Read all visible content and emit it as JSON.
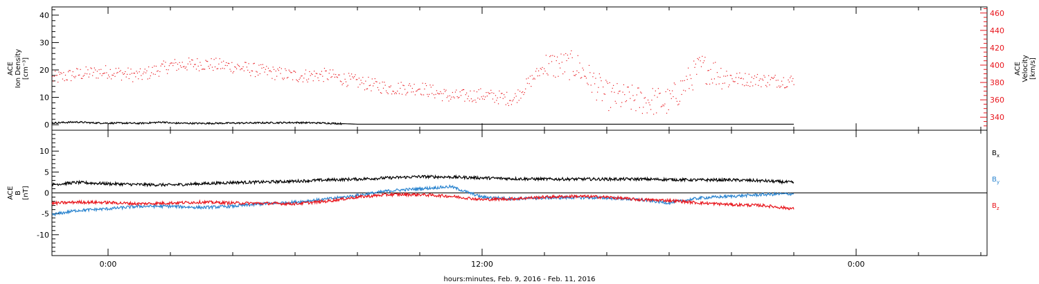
{
  "xlabel": "hours:minutes, Feb.  9, 2016 - Feb. 11, 2016",
  "x_ticks": [
    {
      "hours": 0,
      "label": "0:00"
    },
    {
      "hours": 12,
      "label": "12:00"
    },
    {
      "hours": 24,
      "label": "0:00"
    }
  ],
  "x_range_hours": [
    -1.8,
    28.2
  ],
  "minor_tick_every_hours": 2,
  "chart_data": [
    {
      "type": "scatter",
      "panel": "top",
      "ylabel_left": [
        "ACE",
        "Ion Density",
        "[cm⁻³]"
      ],
      "ylabel_right": [
        "ACE",
        "Velocity",
        "[km/s]"
      ],
      "ylim_left": [
        -2,
        43
      ],
      "yticks_left": [
        0,
        10,
        20,
        30,
        40
      ],
      "ylim_right": [
        325,
        467
      ],
      "yticks_right": [
        340,
        360,
        380,
        400,
        420,
        440,
        460
      ],
      "grid": false,
      "colors": {
        "density": "#000000",
        "velocity": "#e8141b"
      },
      "series": [
        {
          "name": "Ion Density",
          "axis": "left",
          "x_hours": [
            -1.8,
            -1.5,
            -1.0,
            -0.5,
            0.0,
            0.5,
            1.0,
            1.5,
            1.8,
            2.0,
            3.0,
            4.0,
            5.0,
            6.0,
            7.0,
            7.5,
            8.0,
            9.0,
            10.0,
            11.0,
            12.0,
            13.0,
            14.0,
            15.0,
            16.0,
            17.0,
            18.0,
            19.0,
            20.0,
            21.0,
            22.0
          ],
          "values": [
            0.6,
            0.8,
            1.0,
            0.7,
            0.6,
            0.6,
            0.5,
            0.8,
            1.0,
            0.6,
            0.5,
            0.6,
            0.7,
            0.8,
            0.6,
            0.4,
            0.2,
            0.2,
            0.2,
            0.2,
            0.2,
            0.2,
            0.2,
            0.2,
            0.2,
            0.2,
            0.2,
            0.2,
            0.2,
            0.2,
            0.2
          ]
        },
        {
          "name": "Velocity",
          "axis": "right",
          "x_hours": [
            -1.8,
            -1.0,
            0.0,
            1.0,
            2.0,
            3.0,
            4.0,
            5.0,
            6.0,
            7.0,
            8.0,
            9.0,
            10.0,
            11.0,
            12.0,
            13.0,
            14.0,
            15.0,
            16.0,
            17.0,
            18.0,
            19.0,
            20.0,
            21.0,
            22.0
          ],
          "values": [
            385,
            390,
            393,
            388,
            400,
            402,
            399,
            393,
            388,
            389,
            381,
            374,
            374,
            364,
            366,
            361,
            400,
            400,
            365,
            360,
            358,
            398,
            385,
            383,
            382
          ]
        }
      ]
    },
    {
      "type": "line",
      "panel": "bottom",
      "ylabel_left": [
        "ACE",
        "B",
        "[nT]"
      ],
      "ylim": [
        -15,
        15
      ],
      "yticks": [
        -10,
        -5,
        0,
        5,
        10
      ],
      "zero_line": true,
      "grid": false,
      "legend_position": "right",
      "series": [
        {
          "name": "Bx",
          "legend_main": "B",
          "legend_sub": "x",
          "color": "#000000",
          "x_hours": [
            -1.8,
            -1.0,
            0.0,
            1.0,
            2.0,
            3.0,
            4.0,
            5.0,
            6.0,
            7.0,
            8.0,
            9.0,
            10.0,
            11.0,
            12.0,
            13.0,
            14.0,
            15.0,
            16.0,
            17.0,
            18.0,
            19.0,
            20.0,
            21.0,
            22.0
          ],
          "values": [
            2.0,
            2.5,
            2.2,
            2.0,
            1.9,
            2.2,
            2.5,
            2.6,
            2.8,
            3.1,
            3.3,
            3.6,
            3.9,
            3.8,
            3.6,
            3.4,
            3.3,
            3.3,
            3.3,
            3.3,
            3.2,
            3.1,
            3.1,
            2.9,
            2.5
          ]
        },
        {
          "name": "By",
          "legend_main": "B",
          "legend_sub": "y",
          "color": "#2a84cf",
          "x_hours": [
            -1.8,
            -1.0,
            0.0,
            1.0,
            2.0,
            3.0,
            4.0,
            5.0,
            6.0,
            7.0,
            8.0,
            9.0,
            10.0,
            11.0,
            12.0,
            13.0,
            14.0,
            15.0,
            16.0,
            17.0,
            18.0,
            19.0,
            20.0,
            21.0,
            22.0
          ],
          "values": [
            -5.2,
            -4.2,
            -3.8,
            -3.2,
            -3.2,
            -3.5,
            -3.2,
            -2.6,
            -2.2,
            -1.5,
            -0.6,
            0.5,
            1.0,
            1.5,
            -1.0,
            -1.4,
            -1.2,
            -1.1,
            -1.2,
            -1.6,
            -2.4,
            -1.2,
            -0.8,
            -0.4,
            -0.2
          ]
        },
        {
          "name": "Bz",
          "legend_main": "B",
          "legend_sub": "z",
          "color": "#e8141b",
          "x_hours": [
            -1.8,
            -1.0,
            0.0,
            1.0,
            2.0,
            3.0,
            4.0,
            5.0,
            6.0,
            7.0,
            8.0,
            9.0,
            10.0,
            11.0,
            12.0,
            13.0,
            14.0,
            15.0,
            16.0,
            17.0,
            18.0,
            19.0,
            20.0,
            21.0,
            22.0
          ],
          "values": [
            -2.5,
            -2.2,
            -2.3,
            -2.6,
            -2.4,
            -2.2,
            -2.4,
            -2.5,
            -2.6,
            -2.0,
            -1.0,
            -0.4,
            -0.4,
            -0.8,
            -1.6,
            -1.4,
            -1.0,
            -0.8,
            -1.0,
            -1.6,
            -1.8,
            -2.4,
            -2.8,
            -3.0,
            -3.8
          ]
        }
      ]
    }
  ]
}
